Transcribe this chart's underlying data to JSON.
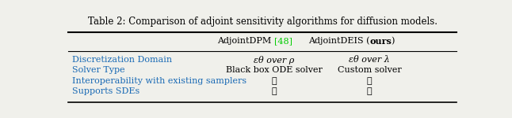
{
  "title": "Table 2: Comparison of adjoint sensitivity algorithms for diffusion models.",
  "col_header_ref_color": "#00cc00",
  "rows": [
    [
      "Discretization Domain",
      "εθ over ρ",
      "εθ over λ"
    ],
    [
      "Solver Type",
      "Black box ODE solver",
      "Custom solver"
    ],
    [
      "Interoperability with existing samplers",
      "✗",
      "✓"
    ],
    [
      "Supports SDEs",
      "✗",
      "✓"
    ]
  ],
  "row_label_color": "#1a6ab5",
  "text_color": "#000000",
  "background_color": "#f0f0eb",
  "title_fontsize": 8.5,
  "body_fontsize": 8.0,
  "header_fontsize": 8.0,
  "c0": 0.02,
  "c1": 0.535,
  "c2": 0.775,
  "figsize": [
    6.46,
    1.5
  ],
  "dpi": 100
}
